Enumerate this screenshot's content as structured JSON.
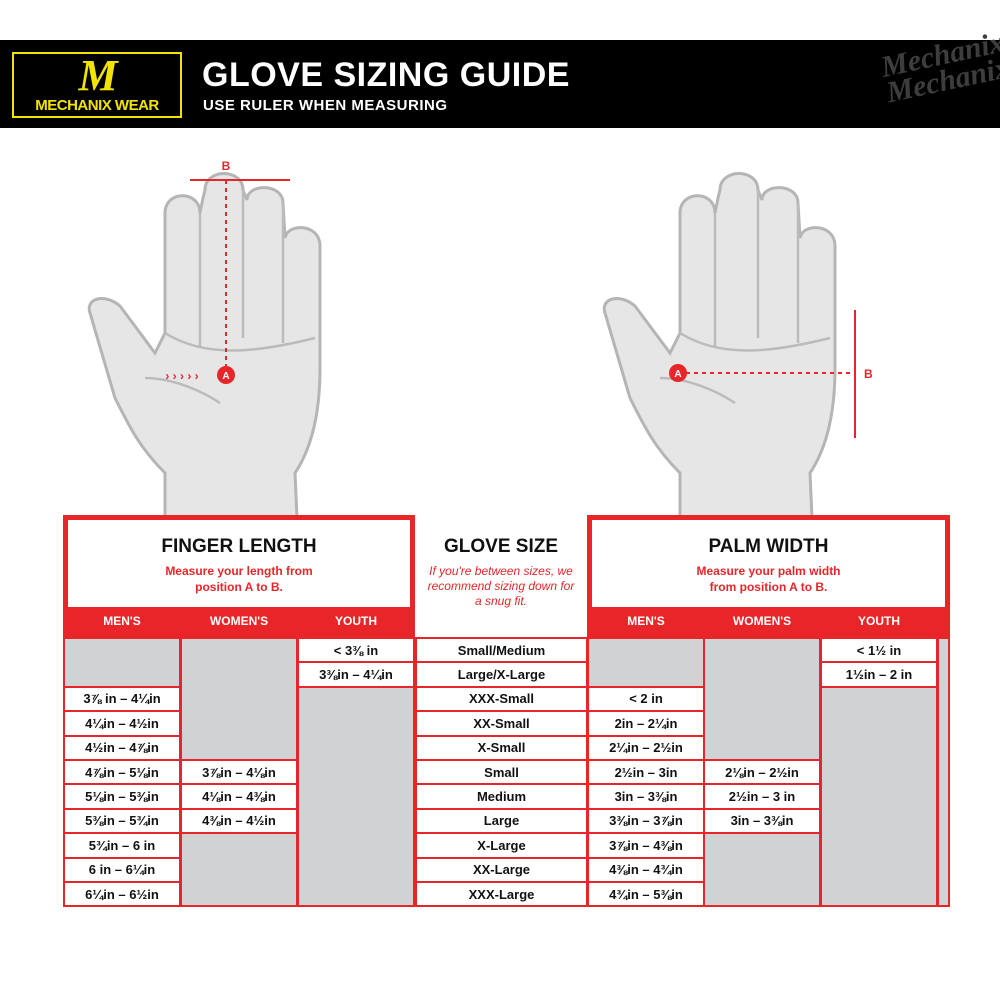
{
  "header": {
    "logo_text": "MECHANIX WEAR",
    "title": "GLOVE SIZING GUIDE",
    "subtitle": "USE RULER WHEN MEASURING",
    "watermark": "Mechanix GLOVES"
  },
  "diagram": {
    "point_a": "A",
    "point_b": "B"
  },
  "colors": {
    "accent": "#e8262a",
    "logo": "#f2e400",
    "gray_cell": "#d1d2d4"
  },
  "finger_length": {
    "title": "FINGER LENGTH",
    "instruction": "Measure your length from position A to B.",
    "columns": [
      {
        "label": "MEN'S",
        "start_row": 2,
        "values": [
          "3⅞ in – 4¼in",
          "4¼in – 4½in",
          "4½in – 4⅞in",
          "4⅞in – 5⅛in",
          "5⅛in – 5⅜in",
          "5⅜in – 5¾in",
          "5¾in – 6 in",
          "6 in – 6¼in",
          "6¼in – 6½in"
        ]
      },
      {
        "label": "WOMEN'S",
        "start_row": 5,
        "values": [
          "3⅞in – 4⅛in",
          "4⅛in – 4⅜in",
          "4⅜in – 4½in"
        ]
      },
      {
        "label": "YOUTH",
        "start_row": 0,
        "values": [
          "< 3⅜ in",
          "3⅜in – 4¼in"
        ]
      }
    ]
  },
  "glove_size": {
    "title": "GLOVE SIZE",
    "note": "If you're between sizes, we recommend sizing down for a snug fit.",
    "sizes": [
      "Small/Medium",
      "Large/X-Large",
      "XXX-Small",
      "XX-Small",
      "X-Small",
      "Small",
      "Medium",
      "Large",
      "X-Large",
      "XX-Large",
      "XXX-Large"
    ]
  },
  "palm_width": {
    "title": "PALM WIDTH",
    "instruction": "Measure your palm width from position A to B.",
    "columns": [
      {
        "label": "MEN'S",
        "start_row": 2,
        "values": [
          "< 2 in",
          "2in – 2¼in",
          "2¼in – 2½in",
          "2½in – 3in",
          "3in – 3⅜in",
          "3⅜in – 3⅞in",
          "3⅞in – 4⅜in",
          "4⅜in – 4¾in",
          "4¾in – 5⅜in"
        ]
      },
      {
        "label": "WOMEN'S",
        "start_row": 5,
        "values": [
          "2⅛in – 2½in",
          "2½in – 3 in",
          "3in – 3⅜in"
        ]
      },
      {
        "label": "YOUTH",
        "start_row": 0,
        "values": [
          "< 1½ in",
          "1½in – 2 in"
        ]
      }
    ]
  }
}
